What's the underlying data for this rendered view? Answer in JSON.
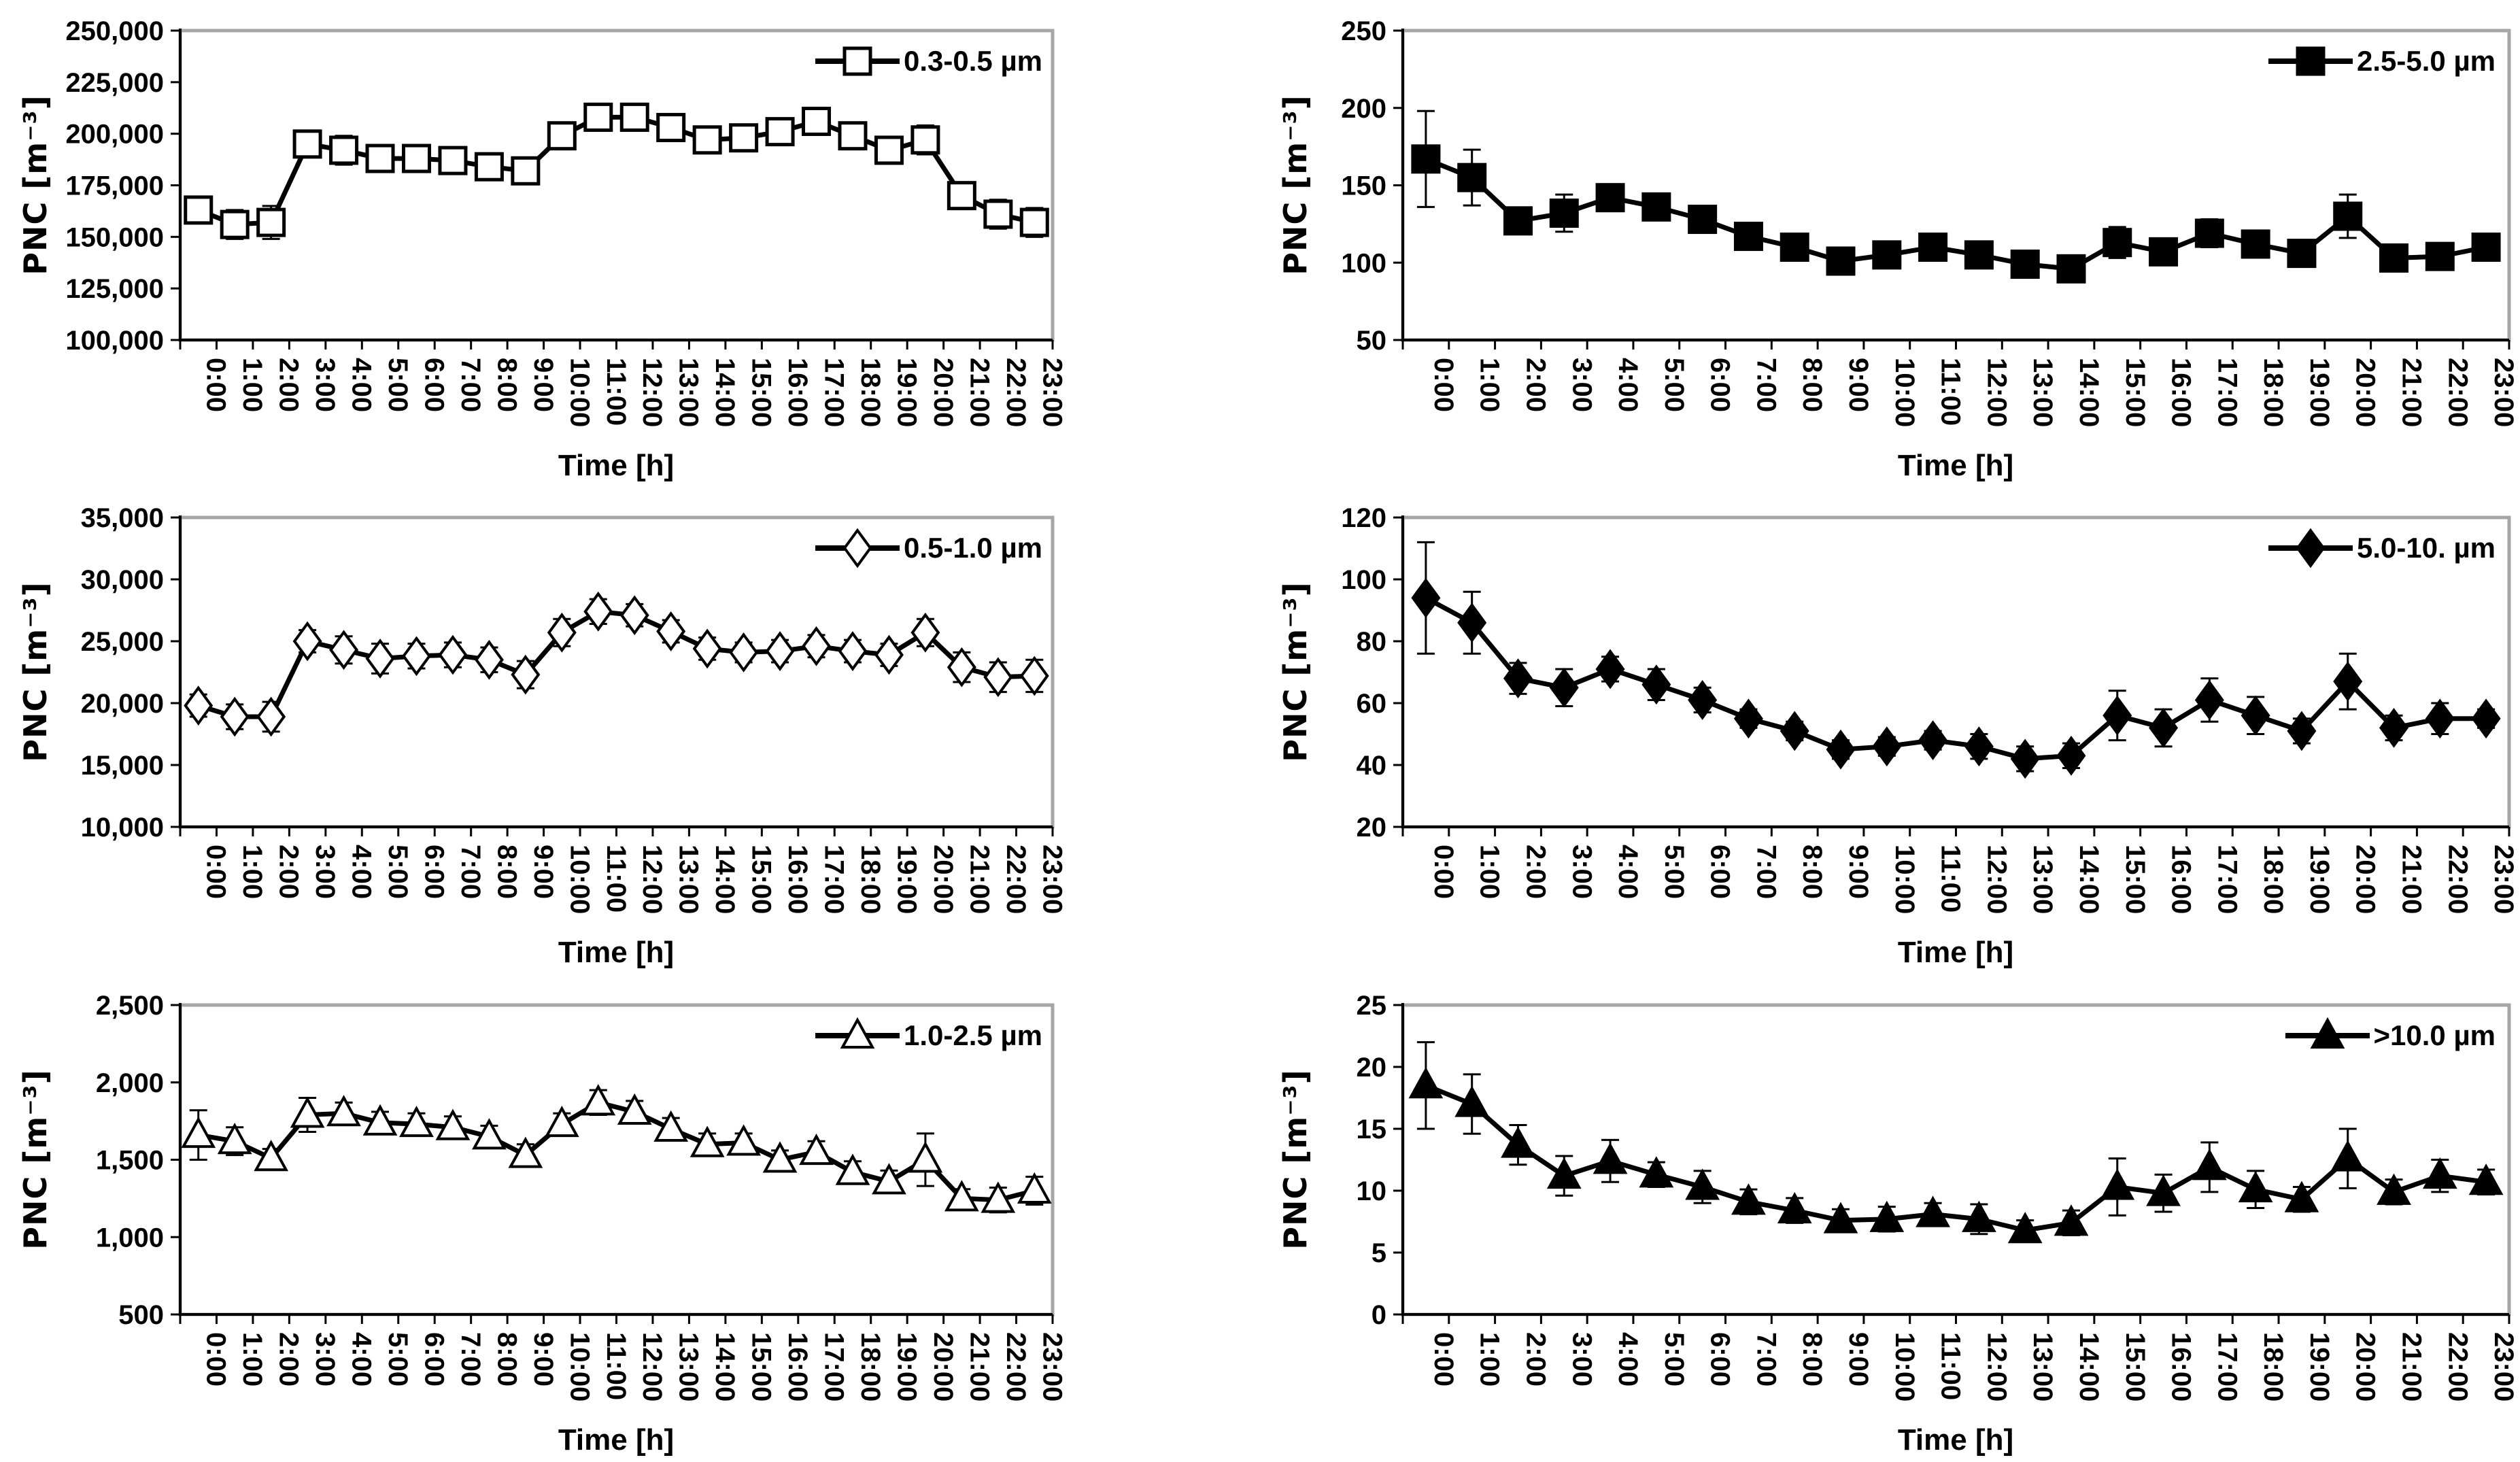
{
  "page": {
    "background": "#ffffff"
  },
  "colors": {
    "line": "#000000",
    "frame": "#a6a6a6",
    "text": "#000000",
    "plot_bg": "#ffffff"
  },
  "charts_shared": {
    "ylabel": "PNC [m⁻³]",
    "xlabel": "Time [h]",
    "legend_position": "top-right",
    "grid": "off",
    "categories": [
      "0:00",
      "1:00",
      "2:00",
      "3:00",
      "4:00",
      "5:00",
      "6:00",
      "7:00",
      "8:00",
      "9:00",
      "10:00",
      "11:00",
      "12:00",
      "13:00",
      "14:00",
      "15:00",
      "16:00",
      "17:00",
      "18:00",
      "19:00",
      "20:00",
      "21:00",
      "22:00",
      "23:00"
    ]
  },
  "chart_data": [
    {
      "type": "line",
      "grid_position": "top-left",
      "legend": "0.3-0.5 µm",
      "marker": "square-open",
      "ylim": [
        100000,
        250000
      ],
      "ystep": 25000,
      "values": [
        163000,
        156000,
        157000,
        195000,
        192000,
        188000,
        188000,
        187000,
        184000,
        182000,
        199000,
        208000,
        208000,
        203000,
        197000,
        198000,
        201000,
        206000,
        199000,
        192000,
        197000,
        170000,
        161000,
        157000
      ],
      "errors": [
        5000,
        7000,
        8000,
        4000,
        7000,
        6000,
        4000,
        4000,
        5000,
        6000,
        5000,
        5000,
        6000,
        5000,
        5000,
        4000,
        5000,
        5000,
        5000,
        6000,
        7000,
        5000,
        7000,
        7000
      ]
    },
    {
      "type": "line",
      "grid_position": "top-right",
      "legend": "2.5-5.0 µm",
      "marker": "square-filled",
      "ylim": [
        50,
        250
      ],
      "ystep": 50,
      "values": [
        167,
        155,
        127,
        132,
        142,
        136,
        128,
        117,
        110,
        101,
        105,
        110,
        105,
        99,
        96,
        113,
        107,
        119,
        112,
        106,
        130,
        103,
        104,
        110
      ],
      "errors": [
        31,
        18,
        7,
        12,
        8,
        8,
        7,
        6,
        6,
        6,
        6,
        7,
        6,
        6,
        7,
        10,
        7,
        9,
        7,
        7,
        14,
        7,
        6,
        7
      ]
    },
    {
      "type": "line",
      "grid_position": "middle-left",
      "legend": "0.5-1.0 µm",
      "marker": "diamond-open",
      "ylim": [
        10000,
        35000
      ],
      "ystep": 5000,
      "values": [
        19800,
        18900,
        18900,
        25000,
        24300,
        23600,
        23800,
        23900,
        23500,
        22300,
        25700,
        27400,
        27100,
        25800,
        24400,
        24100,
        24200,
        24600,
        24200,
        23900,
        25700,
        22900,
        22100,
        22200
      ],
      "errors": [
        900,
        1000,
        1200,
        900,
        1100,
        1200,
        1000,
        1000,
        1000,
        1100,
        1100,
        1000,
        900,
        900,
        900,
        800,
        900,
        900,
        900,
        900,
        1100,
        1200,
        1200,
        1300
      ]
    },
    {
      "type": "line",
      "grid_position": "middle-right",
      "legend": "5.0-10. µm",
      "marker": "diamond-filled",
      "ylim": [
        20,
        120
      ],
      "ystep": 20,
      "values": [
        94,
        86,
        68,
        65,
        71,
        66,
        61,
        55,
        51,
        45,
        46,
        48,
        46,
        42,
        43,
        56,
        52,
        61,
        56,
        51,
        67,
        52,
        55,
        55
      ],
      "errors": [
        18,
        10,
        5,
        6,
        4,
        5,
        4,
        3,
        3,
        3,
        3,
        3,
        4,
        4,
        4,
        8,
        6,
        7,
        6,
        4,
        9,
        4,
        5,
        3
      ]
    },
    {
      "type": "line",
      "grid_position": "bottom-left",
      "legend": "1.0-2.5 µm",
      "marker": "triangle-open",
      "ylim": [
        500,
        2500
      ],
      "ystep": 500,
      "values": [
        1660,
        1620,
        1510,
        1790,
        1800,
        1740,
        1730,
        1710,
        1650,
        1530,
        1730,
        1870,
        1810,
        1700,
        1600,
        1610,
        1500,
        1550,
        1420,
        1360,
        1500,
        1250,
        1240,
        1300
      ],
      "errors": [
        160,
        90,
        60,
        110,
        70,
        70,
        70,
        70,
        70,
        70,
        70,
        80,
        70,
        70,
        70,
        60,
        60,
        70,
        70,
        70,
        170,
        60,
        80,
        90
      ]
    },
    {
      "type": "line",
      "grid_position": "bottom-right",
      "legend": ">10.0 µm",
      "marker": "triangle-filled",
      "ylim": [
        0,
        25
      ],
      "ystep": 5,
      "values": [
        18.5,
        17,
        13.7,
        11.2,
        12.4,
        11.3,
        10.3,
        9.1,
        8.4,
        7.6,
        7.7,
        8.1,
        7.7,
        6.8,
        7.4,
        10.3,
        9.8,
        11.9,
        10.1,
        9.3,
        12.6,
        9.9,
        11.2,
        10.7
      ],
      "errors": [
        3.5,
        2.4,
        1.6,
        1.6,
        1.7,
        1.0,
        1.3,
        1.0,
        1.0,
        0.9,
        1.0,
        0.9,
        1.2,
        0.8,
        1.0,
        2.3,
        1.5,
        2.0,
        1.5,
        1.0,
        2.4,
        1.0,
        1.3,
        1.0
      ]
    }
  ]
}
